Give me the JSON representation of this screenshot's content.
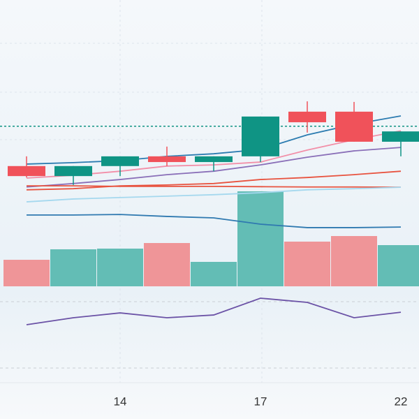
{
  "chart_data": {
    "type": "candlestick",
    "categories": [
      null,
      null,
      "14",
      null,
      null,
      "17",
      null,
      null,
      "22"
    ],
    "open": [
      42.0,
      38.5,
      42.0,
      45.4,
      43.4,
      45.4,
      61.0,
      61.0,
      50.5
    ],
    "high": [
      45.4,
      42.0,
      45.4,
      48.8,
      45.4,
      59.3,
      64.6,
      64.4,
      54.1
    ],
    "low": [
      38.0,
      35.4,
      38.5,
      42.0,
      40.2,
      43.4,
      53.7,
      50.5,
      45.4
    ],
    "close": [
      38.5,
      42.0,
      45.4,
      43.4,
      45.4,
      59.3,
      57.3,
      50.5,
      54.1
    ],
    "up_color": "#0f9484",
    "down_color": "#f0525a",
    "ylim": [
      0,
      100
    ],
    "price_line": 55.9,
    "series": [
      {
        "color": "#2b7bb0",
        "values": [
          42.7,
          43.2,
          43.9,
          45.4,
          46.3,
          47.8,
          52.9,
          56.6,
          59.5
        ]
      },
      {
        "color": "#f28fa8",
        "values": [
          37.8,
          38.8,
          40.2,
          42.0,
          42.4,
          43.4,
          47.6,
          51.2,
          54.3
        ]
      },
      {
        "color": "#8a6fb8",
        "values": [
          34.7,
          35.9,
          37.3,
          39.0,
          40.2,
          42.4,
          45.1,
          47.3,
          48.5
        ]
      },
      {
        "color": "#e8533f",
        "values": [
          33.7,
          34.1,
          35.1,
          35.4,
          35.9,
          37.3,
          38.0,
          39.0,
          40.2
        ]
      },
      {
        "color": "#e8533f",
        "values": [
          35.1,
          35.1,
          34.9,
          34.9,
          34.9,
          34.8,
          34.7,
          34.7,
          34.6
        ]
      },
      {
        "color": "#a5d8ee",
        "values": [
          29.5,
          30.5,
          31.0,
          31.5,
          32.0,
          32.7,
          33.7,
          34.1,
          34.6
        ]
      },
      {
        "color": "#2f79b0",
        "values": [
          24.9,
          24.9,
          25.1,
          24.4,
          23.9,
          21.7,
          20.5,
          20.5,
          20.7
        ]
      }
    ],
    "volume": {
      "values": [
        38,
        53,
        54,
        62,
        35,
        136,
        64,
        72,
        59
      ],
      "ylim": [
        0,
        200
      ],
      "up_color": "#63bdb5",
      "down_color": "#ef9598"
    },
    "indicator": {
      "values": [
        59.2,
        65.5,
        69.9,
        65.5,
        68.0,
        83.2,
        79.4,
        65.5,
        70.5
      ],
      "color": "#6b52a6",
      "ylim": [
        0,
        100
      ],
      "levels": [
        80,
        20
      ]
    }
  }
}
